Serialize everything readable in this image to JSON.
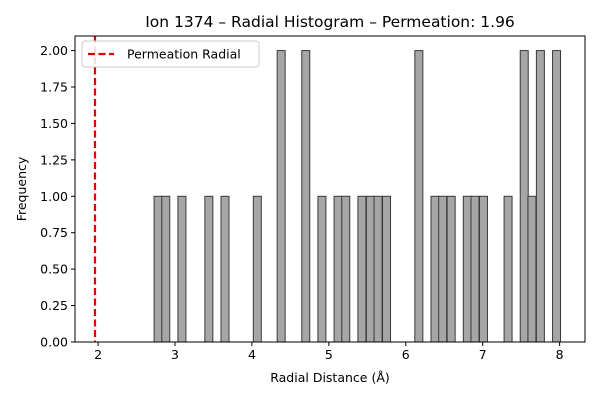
{
  "chart_data": {
    "type": "bar",
    "title": "Ion 1374 – Radial Histogram – Permeation: 1.96",
    "xlabel": "Radial Distance (Å)",
    "ylabel": "Frequency",
    "xlim": [
      1.7,
      8.33
    ],
    "ylim": [
      0,
      2.1
    ],
    "grid": false,
    "legend_position": "upper-left",
    "xticks": [
      2,
      3,
      4,
      5,
      6,
      7,
      8
    ],
    "yticks": [
      "0.00",
      "0.25",
      "0.50",
      "0.75",
      "1.00",
      "1.25",
      "1.50",
      "1.75",
      "2.00"
    ],
    "bin_width": 0.104,
    "bar_color": "#a6a6a6",
    "bar_edge_color": "#3a3a3a",
    "series": [
      {
        "name": "",
        "bins": [
          {
            "x": 2.78,
            "value": 1
          },
          {
            "x": 2.88,
            "value": 1
          },
          {
            "x": 3.09,
            "value": 1
          },
          {
            "x": 3.44,
            "value": 1
          },
          {
            "x": 3.65,
            "value": 1
          },
          {
            "x": 4.07,
            "value": 1
          },
          {
            "x": 4.38,
            "value": 2
          },
          {
            "x": 4.7,
            "value": 2
          },
          {
            "x": 4.91,
            "value": 1
          },
          {
            "x": 5.12,
            "value": 1
          },
          {
            "x": 5.22,
            "value": 1
          },
          {
            "x": 5.43,
            "value": 1
          },
          {
            "x": 5.54,
            "value": 1
          },
          {
            "x": 5.64,
            "value": 1
          },
          {
            "x": 5.75,
            "value": 1
          },
          {
            "x": 6.17,
            "value": 2
          },
          {
            "x": 6.38,
            "value": 1
          },
          {
            "x": 6.48,
            "value": 1
          },
          {
            "x": 6.59,
            "value": 1
          },
          {
            "x": 6.8,
            "value": 1
          },
          {
            "x": 6.9,
            "value": 1
          },
          {
            "x": 7.01,
            "value": 1
          },
          {
            "x": 7.33,
            "value": 1
          },
          {
            "x": 7.54,
            "value": 2
          },
          {
            "x": 7.64,
            "value": 1
          },
          {
            "x": 7.75,
            "value": 2
          },
          {
            "x": 7.96,
            "value": 2
          }
        ]
      }
    ],
    "reference_line": {
      "name": "Permeation Radial",
      "x": 1.96,
      "color": "#e00000",
      "style": "dashed"
    }
  }
}
